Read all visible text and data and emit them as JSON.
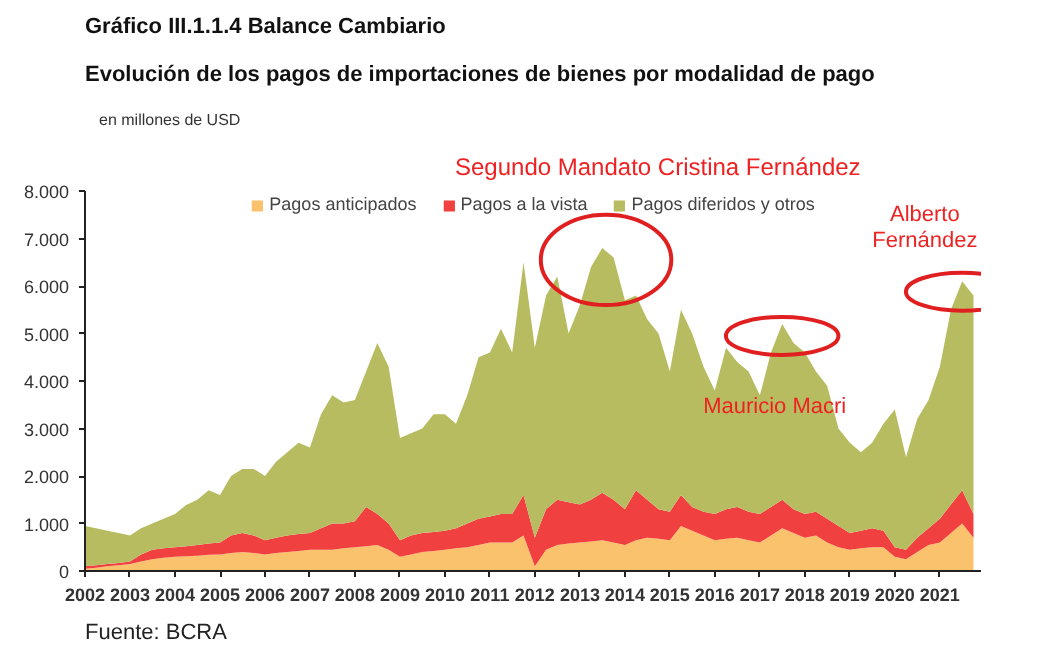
{
  "chart_data": {
    "type": "area",
    "stacked": true,
    "title": "Gráfico III.1.1.4 Balance Cambiario",
    "subtitle": "Evolución de los pagos de importaciones de bienes por modalidad de pago",
    "ylabel": "en millones de USD",
    "annotations": [
      "Segundo Mandato Cristina Fernández",
      "Mauricio Macri",
      "Alberto Fernández",
      "Fuente: BCRA"
    ],
    "x": [
      "2002-01",
      "2002-04",
      "2002-07",
      "2002-10",
      "2003-01",
      "2003-04",
      "2003-07",
      "2003-10",
      "2004-01",
      "2004-04",
      "2004-07",
      "2004-10",
      "2005-01",
      "2005-04",
      "2005-07",
      "2005-10",
      "2006-01",
      "2006-04",
      "2006-07",
      "2006-10",
      "2007-01",
      "2007-04",
      "2007-07",
      "2007-10",
      "2008-01",
      "2008-04",
      "2008-07",
      "2008-10",
      "2009-01",
      "2009-04",
      "2009-07",
      "2009-10",
      "2010-01",
      "2010-04",
      "2010-07",
      "2010-10",
      "2011-01",
      "2011-04",
      "2011-07",
      "2011-10",
      "2012-01",
      "2012-04",
      "2012-07",
      "2012-10",
      "2013-01",
      "2013-04",
      "2013-07",
      "2013-10",
      "2014-01",
      "2014-04",
      "2014-07",
      "2014-10",
      "2015-01",
      "2015-04",
      "2015-07",
      "2015-10",
      "2016-01",
      "2016-04",
      "2016-07",
      "2016-10",
      "2017-01",
      "2017-04",
      "2017-07",
      "2017-10",
      "2018-01",
      "2018-04",
      "2018-07",
      "2018-10",
      "2019-01",
      "2019-04",
      "2019-07",
      "2019-10",
      "2020-01",
      "2020-04",
      "2020-07",
      "2020-10",
      "2021-01",
      "2021-04",
      "2021-07",
      "2021-10"
    ],
    "series": [
      {
        "name": "Pagos anticipados",
        "color": "#fbc26e",
        "values": [
          50,
          70,
          100,
          120,
          150,
          200,
          250,
          280,
          300,
          310,
          320,
          340,
          350,
          380,
          400,
          380,
          350,
          380,
          400,
          420,
          450,
          450,
          450,
          480,
          500,
          520,
          550,
          450,
          300,
          350,
          400,
          420,
          450,
          480,
          500,
          550,
          600,
          600,
          600,
          750,
          100,
          450,
          550,
          580,
          600,
          620,
          650,
          600,
          550,
          650,
          700,
          680,
          650,
          950,
          850,
          750,
          650,
          680,
          700,
          650,
          600,
          750,
          900,
          800,
          700,
          750,
          600,
          500,
          450,
          480,
          500,
          500,
          300,
          250,
          400,
          550,
          600,
          800,
          1000,
          700
        ]
      },
      {
        "name": "Pagos a la vista",
        "color": "#f04040",
        "values": [
          50,
          50,
          50,
          50,
          50,
          150,
          200,
          200,
          200,
          210,
          230,
          240,
          250,
          370,
          400,
          370,
          300,
          320,
          350,
          360,
          350,
          450,
          550,
          520,
          550,
          830,
          650,
          550,
          350,
          400,
          400,
          400,
          400,
          420,
          500,
          550,
          550,
          600,
          600,
          850,
          600,
          850,
          950,
          870,
          800,
          880,
          1000,
          900,
          750,
          1050,
          800,
          620,
          600,
          650,
          500,
          500,
          550,
          620,
          650,
          600,
          600,
          600,
          600,
          500,
          500,
          500,
          500,
          450,
          350,
          370,
          400,
          350,
          200,
          200,
          300,
          350,
          500,
          600,
          700,
          500
        ]
      },
      {
        "name": "Pagos diferidos y otros",
        "color": "#b8bc60",
        "values": [
          850,
          780,
          700,
          630,
          550,
          550,
          550,
          620,
          700,
          870,
          950,
          1120,
          1000,
          1250,
          1350,
          1400,
          1350,
          1600,
          1750,
          1920,
          1800,
          2400,
          2700,
          2550,
          2550,
          2850,
          3600,
          3300,
          2150,
          2150,
          2200,
          2480,
          2450,
          2200,
          2700,
          3400,
          3450,
          3900,
          3400,
          4900,
          4000,
          4500,
          4700,
          3550,
          4200,
          4900,
          5150,
          5100,
          4400,
          4100,
          3800,
          3700,
          2950,
          3900,
          3650,
          3050,
          2600,
          3400,
          3050,
          2950,
          2500,
          3250,
          3700,
          3500,
          3400,
          2950,
          2800,
          2050,
          1900,
          1650,
          1800,
          2250,
          2900,
          1950,
          2500,
          2700,
          3200,
          4100,
          4400,
          4600
        ]
      }
    ],
    "xlim": [
      "2002-01",
      "2021-12"
    ],
    "xticks": [
      "2002",
      "2003",
      "2004",
      "2005",
      "2006",
      "2007",
      "2008",
      "2009",
      "2010",
      "2011",
      "2012",
      "2013",
      "2014",
      "2015",
      "2016",
      "2017",
      "2018",
      "2019",
      "2020",
      "2021"
    ],
    "ylim": [
      0,
      8000
    ],
    "yticks": [
      0,
      {
        "value": 1000,
        "label": "1.000"
      },
      {
        "value": 2000,
        "label": "2.000"
      },
      {
        "value": 3000,
        "label": "3.000"
      },
      {
        "value": 4000,
        "label": "4.000"
      },
      {
        "value": 5000,
        "label": "5.000"
      },
      {
        "value": 6000,
        "label": "6.000"
      },
      {
        "value": 7000,
        "label": "7.000"
      },
      {
        "value": 8000,
        "label": "8.000"
      }
    ],
    "grid": false,
    "legend": "top"
  }
}
